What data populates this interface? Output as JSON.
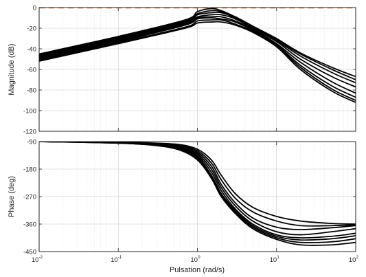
{
  "chart_data": [
    {
      "type": "line",
      "panel": "magnitude",
      "ylabel": "Magnitude (dB)",
      "xscale": "log",
      "xlim": [
        0.01,
        100
      ],
      "ylim": [
        -120,
        0
      ],
      "yticks": [
        0,
        -20,
        -40,
        -60,
        -80,
        -100,
        -120
      ],
      "ytick_labels": [
        "0",
        "-20",
        "-40",
        "-60",
        "-80",
        "-100",
        "-120"
      ],
      "grid": true,
      "reference_line": {
        "y": 0,
        "color": "#e06a2c",
        "style": "dashed"
      },
      "x": [
        0.01,
        0.1,
        0.7,
        1,
        1.5,
        2,
        3,
        5,
        10,
        20,
        50,
        100
      ],
      "series": [
        {
          "values": [
            -45,
            -28,
            -12,
            -4,
            -1,
            -3,
            -9,
            -18,
            -30,
            -44,
            -58,
            -67
          ]
        },
        {
          "values": [
            -46,
            -29,
            -13,
            -6,
            -3,
            -4,
            -9,
            -18,
            -31,
            -45,
            -60,
            -70
          ]
        },
        {
          "values": [
            -47,
            -30,
            -14,
            -7,
            -5,
            -5,
            -10,
            -19,
            -32,
            -47,
            -63,
            -73
          ]
        },
        {
          "values": [
            -48,
            -31,
            -15,
            -9,
            -7,
            -7,
            -11,
            -20,
            -33,
            -50,
            -67,
            -77
          ]
        },
        {
          "values": [
            -49,
            -32,
            -16,
            -10,
            -9,
            -9,
            -13,
            -21,
            -35,
            -53,
            -72,
            -83
          ]
        },
        {
          "values": [
            -50,
            -33,
            -17,
            -11,
            -10,
            -11,
            -14,
            -22,
            -36,
            -56,
            -76,
            -87
          ]
        },
        {
          "values": [
            -51,
            -34,
            -19,
            -13,
            -12,
            -12,
            -16,
            -23,
            -37,
            -58,
            -79,
            -90
          ]
        },
        {
          "values": [
            -52,
            -35,
            -20,
            -15,
            -14,
            -14,
            -17,
            -24,
            -38,
            -60,
            -81,
            -92
          ]
        }
      ]
    },
    {
      "type": "line",
      "panel": "phase",
      "xlabel": "Pulsation  (rad/s)",
      "ylabel": "Phase (deg)",
      "xscale": "log",
      "xlim": [
        0.01,
        100
      ],
      "ylim": [
        -450,
        -90
      ],
      "xtick_bases": [
        "10",
        "10",
        "10",
        "10",
        "10"
      ],
      "xtick_exponents": [
        "-2",
        "-1",
        "0",
        "1",
        "2"
      ],
      "yticks": [
        -90,
        -180,
        -270,
        -360,
        -450
      ],
      "ytick_labels": [
        "-90",
        "-180",
        "-270",
        "-360",
        "-450"
      ],
      "grid": true,
      "x": [
        0.01,
        0.1,
        0.3,
        0.6,
        1,
        1.5,
        2,
        3,
        5,
        10,
        20,
        50,
        100
      ],
      "series": [
        {
          "values": [
            -90,
            -92,
            -95,
            -100,
            -115,
            -150,
            -200,
            -260,
            -305,
            -335,
            -350,
            -358,
            -360
          ]
        },
        {
          "values": [
            -90,
            -92,
            -96,
            -102,
            -120,
            -160,
            -215,
            -275,
            -320,
            -350,
            -365,
            -365,
            -362
          ]
        },
        {
          "values": [
            -90,
            -93,
            -98,
            -105,
            -125,
            -170,
            -230,
            -290,
            -340,
            -370,
            -378,
            -372,
            -365
          ]
        },
        {
          "values": [
            -90,
            -93,
            -99,
            -108,
            -130,
            -180,
            -240,
            -300,
            -350,
            -385,
            -395,
            -385,
            -375
          ]
        },
        {
          "values": [
            -90,
            -94,
            -100,
            -110,
            -135,
            -190,
            -250,
            -310,
            -360,
            -395,
            -405,
            -400,
            -390
          ]
        },
        {
          "values": [
            -90,
            -94,
            -101,
            -112,
            -140,
            -200,
            -260,
            -315,
            -365,
            -400,
            -412,
            -408,
            -398
          ]
        },
        {
          "values": [
            -90,
            -95,
            -102,
            -115,
            -145,
            -205,
            -265,
            -320,
            -370,
            -405,
            -420,
            -418,
            -408
          ]
        },
        {
          "values": [
            -90,
            -95,
            -103,
            -118,
            -150,
            -210,
            -270,
            -325,
            -375,
            -410,
            -428,
            -428,
            -420
          ]
        }
      ]
    }
  ]
}
